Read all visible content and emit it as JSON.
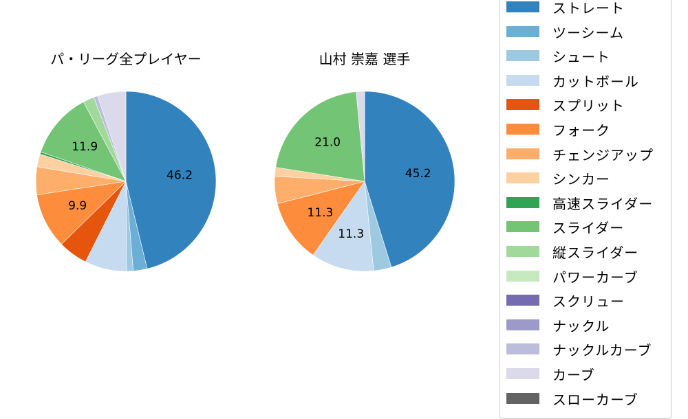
{
  "chart_data": [
    {
      "type": "pie",
      "title": "パ・リーグ全プレイヤー",
      "categories": [
        "ストレート",
        "ツーシーム",
        "シュート",
        "カットボール",
        "スプリット",
        "フォーク",
        "チェンジアップ",
        "シンカー",
        "高速スライダー",
        "スライダー",
        "縦スライダー",
        "ナックルカーブ",
        "カーブ"
      ],
      "values": [
        46.2,
        2.5,
        1.2,
        7.5,
        5.3,
        9.9,
        5.0,
        2.3,
        0.4,
        11.9,
        2.0,
        0.7,
        5.1
      ],
      "labels_shown": {
        "ストレート": "46.2",
        "フォーク": "9.9",
        "スライダー": "11.9"
      },
      "start_angle": 90,
      "direction": "clockwise"
    },
    {
      "type": "pie",
      "title": "山村 崇嘉  選手",
      "categories": [
        "ストレート",
        "シュート",
        "カットボール",
        "フォーク",
        "チェンジアップ",
        "シンカー",
        "スライダー",
        "カーブ"
      ],
      "values": [
        45.2,
        3.2,
        11.3,
        11.3,
        4.9,
        1.6,
        21.0,
        1.5
      ],
      "labels_shown": {
        "ストレート": "45.2",
        "カットボール": "11.3",
        "フォーク": "11.3",
        "スライダー": "21.0"
      },
      "start_angle": 90,
      "direction": "clockwise"
    }
  ],
  "titles": {
    "left": "パ・リーグ全プレイヤー",
    "right": "山村 崇嘉  選手"
  },
  "colors": {
    "ストレート": "#3182bd",
    "ツーシーム": "#6baed6",
    "シュート": "#9ecae1",
    "カットボール": "#c6dbef",
    "スプリット": "#e6550d",
    "フォーク": "#fd8d3c",
    "チェンジアップ": "#fdae6b",
    "シンカー": "#fdd0a2",
    "高速スライダー": "#31a354",
    "スライダー": "#74c476",
    "縦スライダー": "#a1d99b",
    "パワーカーブ": "#c7e9c0",
    "スクリュー": "#756bb1",
    "ナックル": "#9e9ac8",
    "ナックルカーブ": "#bcbddc",
    "カーブ": "#dadaeb",
    "スローカーブ": "#636363"
  },
  "legend": {
    "items": [
      {
        "label": "ストレート",
        "color": "#3182bd"
      },
      {
        "label": "ツーシーム",
        "color": "#6baed6"
      },
      {
        "label": "シュート",
        "color": "#9ecae1"
      },
      {
        "label": "カットボール",
        "color": "#c6dbef"
      },
      {
        "label": "スプリット",
        "color": "#e6550d"
      },
      {
        "label": "フォーク",
        "color": "#fd8d3c"
      },
      {
        "label": "チェンジアップ",
        "color": "#fdae6b"
      },
      {
        "label": "シンカー",
        "color": "#fdd0a2"
      },
      {
        "label": "高速スライダー",
        "color": "#31a354"
      },
      {
        "label": "スライダー",
        "color": "#74c476"
      },
      {
        "label": "縦スライダー",
        "color": "#a1d99b"
      },
      {
        "label": "パワーカーブ",
        "color": "#c7e9c0"
      },
      {
        "label": "スクリュー",
        "color": "#756bb1"
      },
      {
        "label": "ナックル",
        "color": "#9e9ac8"
      },
      {
        "label": "ナックルカーブ",
        "color": "#bcbddc"
      },
      {
        "label": "カーブ",
        "color": "#dadaeb"
      },
      {
        "label": "スローカーブ",
        "color": "#636363"
      }
    ]
  }
}
